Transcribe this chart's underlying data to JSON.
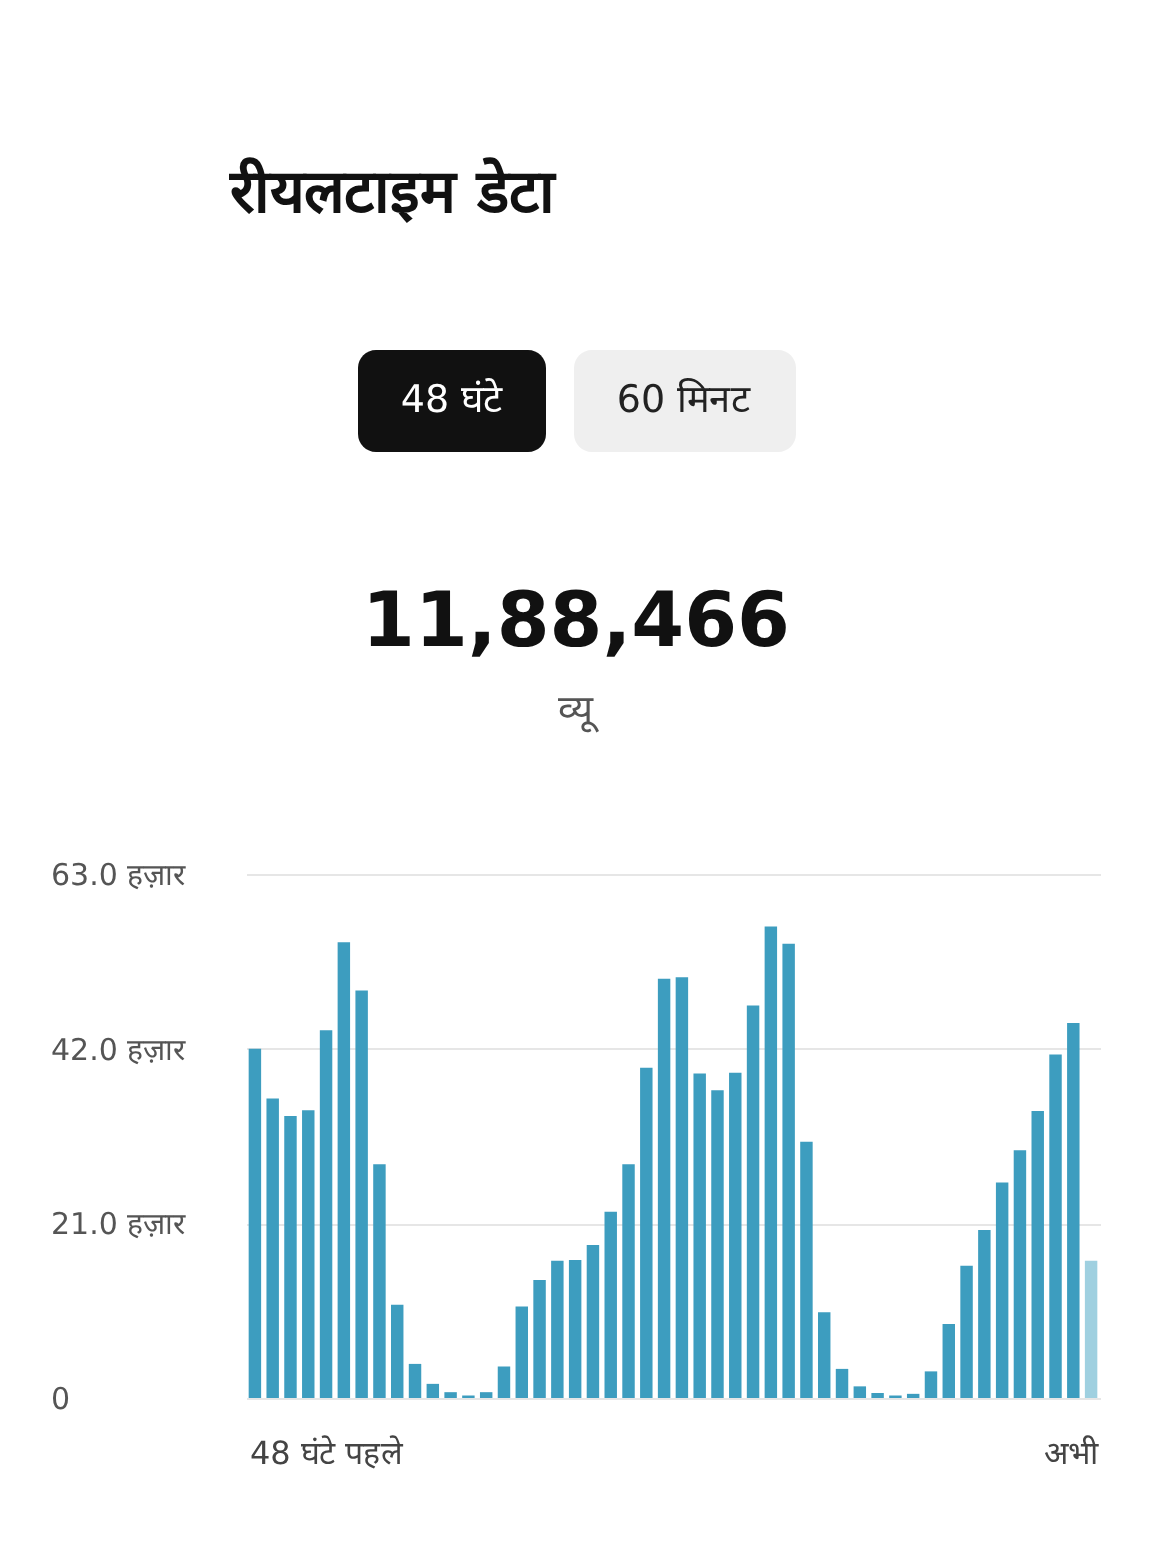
{
  "chart_data": {
    "type": "bar",
    "title": "रीयलटाइम डेटा",
    "annotations": [
      "48 घंटे",
      "60 मिनट",
      "11,88,466",
      "व्यू",
      "48 घंटे पहले",
      "अभी"
    ],
    "categories": [
      null,
      null,
      null,
      null,
      null,
      null,
      null,
      null,
      null,
      null,
      null,
      null,
      null,
      null,
      null,
      null,
      null,
      null,
      null,
      null,
      null,
      null,
      null,
      null,
      null,
      null,
      null,
      null,
      null,
      null,
      null,
      null,
      null,
      null,
      null,
      null,
      null,
      null,
      null,
      null,
      null,
      null,
      null,
      null,
      null,
      null,
      null,
      null
    ],
    "values": [
      42.0,
      36.0,
      33.9,
      34.6,
      44.2,
      54.8,
      49.0,
      28.1,
      11.2,
      4.1,
      1.7,
      0.7,
      0.3,
      0.7,
      3.8,
      11.0,
      14.2,
      16.5,
      16.6,
      18.4,
      22.4,
      28.1,
      39.7,
      50.4,
      50.6,
      39.0,
      37.0,
      39.1,
      47.2,
      56.7,
      54.6,
      30.8,
      10.3,
      3.5,
      1.4,
      0.6,
      0.3,
      0.5,
      3.2,
      8.9,
      15.9,
      20.2,
      25.9,
      29.8,
      34.5,
      41.3,
      45.1,
      16.5
    ],
    "colors": [
      "#3d9dbf",
      "#3d9dbf",
      "#3d9dbf",
      "#3d9dbf",
      "#3d9dbf",
      "#3d9dbf",
      "#3d9dbf",
      "#3d9dbf",
      "#3d9dbf",
      "#3d9dbf",
      "#3d9dbf",
      "#3d9dbf",
      "#3d9dbf",
      "#3d9dbf",
      "#3d9dbf",
      "#3d9dbf",
      "#3d9dbf",
      "#3d9dbf",
      "#3d9dbf",
      "#3d9dbf",
      "#3d9dbf",
      "#3d9dbf",
      "#3d9dbf",
      "#3d9dbf",
      "#3d9dbf",
      "#3d9dbf",
      "#3d9dbf",
      "#3d9dbf",
      "#3d9dbf",
      "#3d9dbf",
      "#3d9dbf",
      "#3d9dbf",
      "#3d9dbf",
      "#3d9dbf",
      "#3d9dbf",
      "#3d9dbf",
      "#3d9dbf",
      "#3d9dbf",
      "#3d9dbf",
      "#3d9dbf",
      "#3d9dbf",
      "#3d9dbf",
      "#3d9dbf",
      "#3d9dbf",
      "#3d9dbf",
      "#3d9dbf",
      "#3d9dbf",
      "#9fd0e0"
    ],
    "ylim": [
      0,
      63.0
    ],
    "yticks": [
      0,
      {
        "value": 21.0,
        "label": "21.0 हज़ार"
      },
      {
        "value": 42.0,
        "label": "42.0 हज़ार"
      },
      {
        "value": 63.0,
        "label": "63.0 हज़ार"
      }
    ],
    "grid": "y",
    "tick_labels": "y"
  }
}
